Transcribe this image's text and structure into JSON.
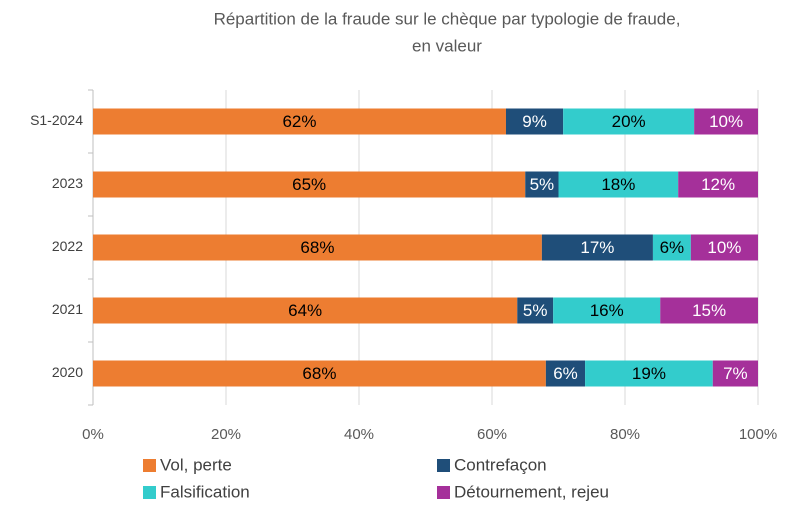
{
  "chart_data": {
    "type": "stacked_barh",
    "title": [
      "Répartition de la fraude sur le chèque par typologie de fraude,",
      "en valeur"
    ],
    "categories": [
      "S1-2024",
      "2023",
      "2022",
      "2021",
      "2020"
    ],
    "series": [
      {
        "name": "Vol, perte",
        "color": "#ed7d31",
        "values": [
          62.1,
          65,
          67.5,
          63.8,
          68.1
        ],
        "value_labels": [
          "62%",
          "65%",
          "68%",
          "64%",
          "68%"
        ]
      },
      {
        "name": "Contrefaçon",
        "color": "#1f4e79",
        "values": [
          8.6,
          5,
          16.7,
          5.4,
          5.9
        ],
        "value_labels": [
          "9%",
          "5%",
          "17%",
          "5%",
          "6%"
        ]
      },
      {
        "name": "Falsification",
        "color": "#33cccc",
        "values": [
          19.7,
          18,
          5.7,
          16.1,
          19.2
        ],
        "value_labels": [
          "20%",
          "18%",
          "6%",
          "16%",
          "19%"
        ]
      },
      {
        "name": "Détournement, rejeu",
        "color": "#a5309a",
        "values": [
          9.6,
          12,
          10.1,
          14.7,
          6.8
        ],
        "value_labels": [
          "10%",
          "12%",
          "10%",
          "15%",
          "7%"
        ]
      }
    ],
    "xlim": [
      0,
      100
    ],
    "xticks": [
      {
        "value": 0,
        "label": "0%"
      },
      {
        "value": 20,
        "label": "20%"
      },
      {
        "value": 40,
        "label": "40%"
      },
      {
        "value": 60,
        "label": "60%"
      },
      {
        "value": 80,
        "label": "80%"
      },
      {
        "value": 100,
        "label": "100%"
      }
    ],
    "grid": true,
    "legend": "bottom"
  }
}
